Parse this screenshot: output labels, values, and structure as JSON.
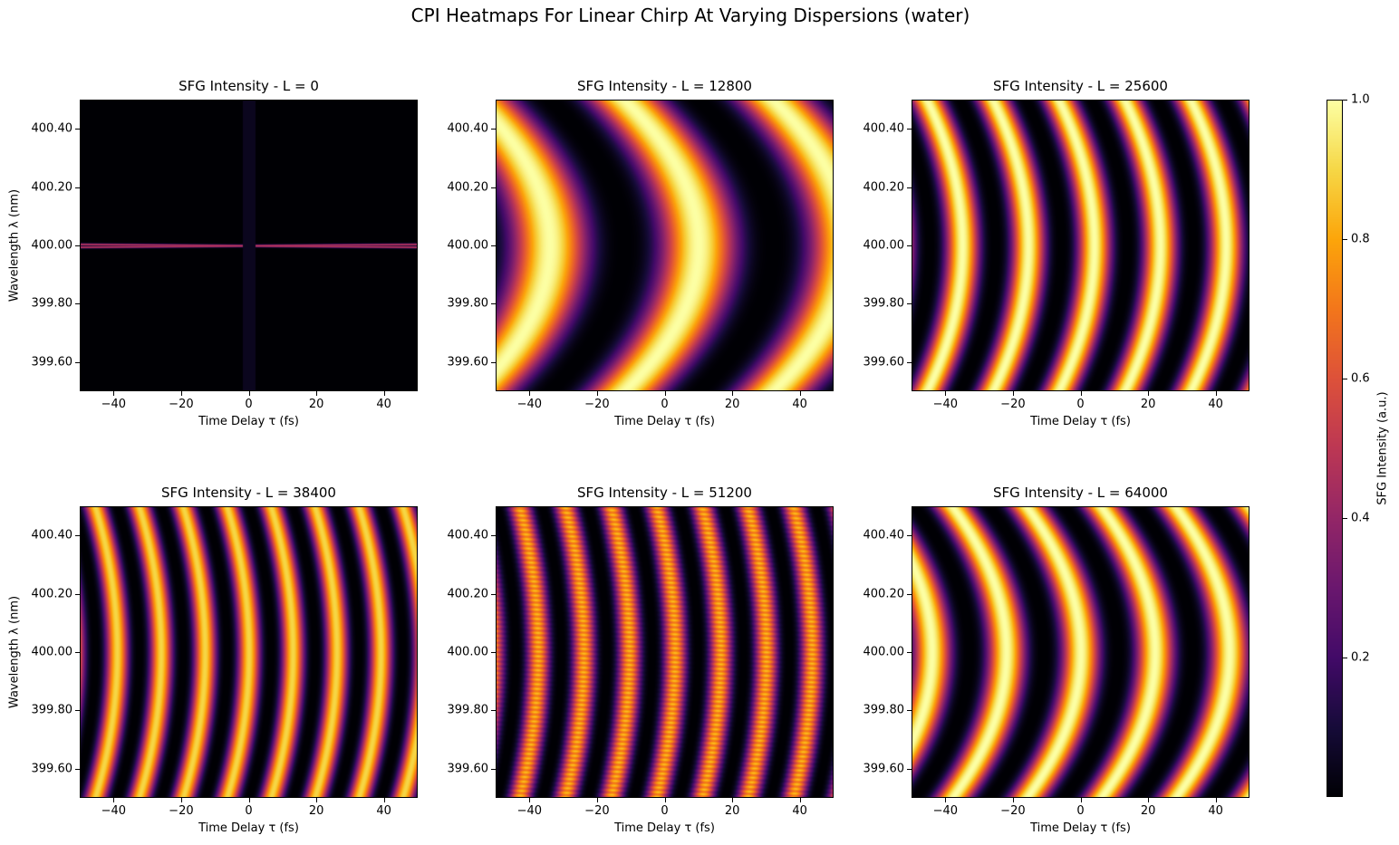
{
  "figure": {
    "title": "CPI Heatmaps For Linear Chirp At Varying Dispersions (water)"
  },
  "colorbar": {
    "label": "SFG Intensity (a.u.)",
    "ticks": [
      0.2,
      0.4,
      0.6,
      0.8,
      1.0
    ],
    "tick_labels": [
      "0.2",
      "0.4",
      "0.6",
      "0.8",
      "1.0"
    ],
    "range": [
      0.0,
      1.0
    ],
    "colormap": "inferno"
  },
  "axes": {
    "xlabel": "Time Delay τ (fs)",
    "ylabel": "Wavelength λ (nm)",
    "xlim": [
      -50,
      50
    ],
    "ylim": [
      399.5,
      400.5
    ],
    "xticks": [
      -40,
      -20,
      0,
      20,
      40
    ],
    "xtick_labels": [
      "−40",
      "−20",
      "0",
      "20",
      "40"
    ],
    "yticks": [
      399.6,
      399.8,
      400.0,
      400.2,
      400.4
    ],
    "ytick_labels": [
      "399.60",
      "399.80",
      "400.00",
      "400.20",
      "400.40"
    ]
  },
  "chart_data": [
    {
      "type": "heatmap",
      "title": "SFG Intensity - L = 0",
      "L": 0,
      "fringe_period_fs": 0,
      "curvature": 0.0,
      "shift_fs": 0,
      "peak": 0.02
    },
    {
      "type": "heatmap",
      "title": "SFG Intensity - L = 12800",
      "L": 12800,
      "fringe_period_fs": 44,
      "curvature": 22.0,
      "shift_fs": 10,
      "peak": 1.0
    },
    {
      "type": "heatmap",
      "title": "SFG Intensity - L = 25600",
      "L": 25600,
      "fringe_period_fs": 19.5,
      "curvature": 10.5,
      "shift_fs": 4,
      "peak": 1.0
    },
    {
      "type": "heatmap",
      "title": "SFG Intensity - L = 38400",
      "L": 38400,
      "fringe_period_fs": 13.0,
      "curvature": 6.5,
      "shift_fs": 0,
      "peak": 0.9
    },
    {
      "type": "heatmap",
      "title": "SFG Intensity - L = 51200",
      "L": 51200,
      "fringe_period_fs": 13.5,
      "curvature": 5.5,
      "shift_fs": 3,
      "peak": 0.85
    },
    {
      "type": "heatmap",
      "title": "SFG Intensity - L = 64000",
      "L": 64000,
      "fringe_period_fs": 22.0,
      "curvature": 16.0,
      "shift_fs": 0,
      "peak": 1.0
    }
  ]
}
